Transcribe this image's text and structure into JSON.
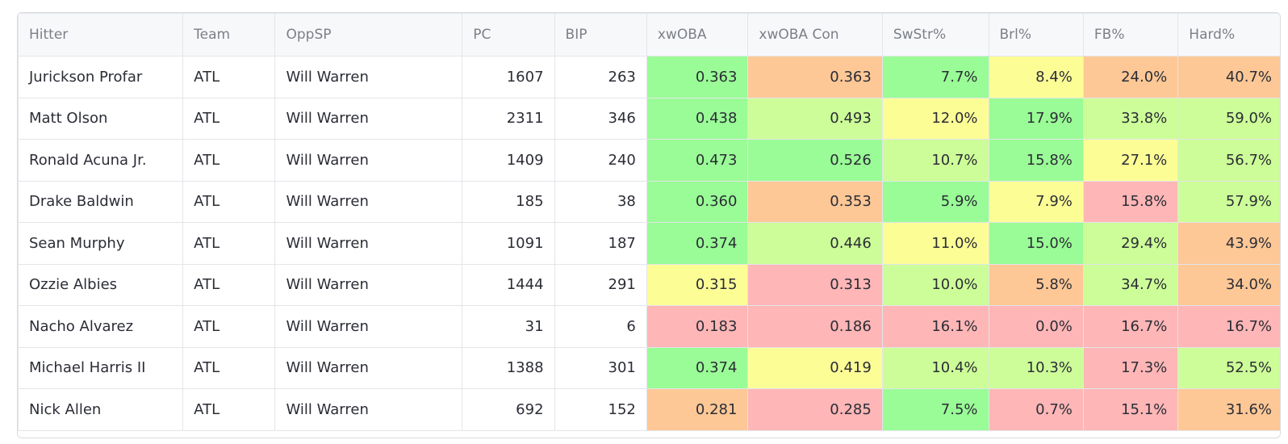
{
  "headers": [
    "Hitter",
    "Team",
    "OppSP",
    "PC",
    "BIP",
    "xwOBA",
    "xwOBA Con",
    "SwStr%",
    "Brl%",
    "FB%",
    "Hard%"
  ],
  "rows": [
    {
      "hitter": "Jurickson Profar",
      "team": "ATL",
      "oppsp": "Will Warren",
      "pc": "1607",
      "bip": "263",
      "xwoba": "0.363",
      "xwoba_con": "0.363",
      "swstr": "7.7%",
      "brl": "8.4%",
      "fb": "24.0%",
      "hard": "40.7%"
    },
    {
      "hitter": "Matt Olson",
      "team": "ATL",
      "oppsp": "Will Warren",
      "pc": "2311",
      "bip": "346",
      "xwoba": "0.438",
      "xwoba_con": "0.493",
      "swstr": "12.0%",
      "brl": "17.9%",
      "fb": "33.8%",
      "hard": "59.0%"
    },
    {
      "hitter": "Ronald Acuna Jr.",
      "team": "ATL",
      "oppsp": "Will Warren",
      "pc": "1409",
      "bip": "240",
      "xwoba": "0.473",
      "xwoba_con": "0.526",
      "swstr": "10.7%",
      "brl": "15.8%",
      "fb": "27.1%",
      "hard": "56.7%"
    },
    {
      "hitter": "Drake Baldwin",
      "team": "ATL",
      "oppsp": "Will Warren",
      "pc": "185",
      "bip": "38",
      "xwoba": "0.360",
      "xwoba_con": "0.353",
      "swstr": "5.9%",
      "brl": "7.9%",
      "fb": "15.8%",
      "hard": "57.9%"
    },
    {
      "hitter": "Sean Murphy",
      "team": "ATL",
      "oppsp": "Will Warren",
      "pc": "1091",
      "bip": "187",
      "xwoba": "0.374",
      "xwoba_con": "0.446",
      "swstr": "11.0%",
      "brl": "15.0%",
      "fb": "29.4%",
      "hard": "43.9%"
    },
    {
      "hitter": "Ozzie Albies",
      "team": "ATL",
      "oppsp": "Will Warren",
      "pc": "1444",
      "bip": "291",
      "xwoba": "0.315",
      "xwoba_con": "0.313",
      "swstr": "10.0%",
      "brl": "5.8%",
      "fb": "34.7%",
      "hard": "34.0%"
    },
    {
      "hitter": "Nacho Alvarez",
      "team": "ATL",
      "oppsp": "Will Warren",
      "pc": "31",
      "bip": "6",
      "xwoba": "0.183",
      "xwoba_con": "0.186",
      "swstr": "16.1%",
      "brl": "0.0%",
      "fb": "16.7%",
      "hard": "16.7%"
    },
    {
      "hitter": "Michael Harris II",
      "team": "ATL",
      "oppsp": "Will Warren",
      "pc": "1388",
      "bip": "301",
      "xwoba": "0.374",
      "xwoba_con": "0.419",
      "swstr": "10.4%",
      "brl": "10.3%",
      "fb": "17.3%",
      "hard": "52.5%"
    },
    {
      "hitter": "Nick Allen",
      "team": "ATL",
      "oppsp": "Will Warren",
      "pc": "692",
      "bip": "152",
      "xwoba": "0.281",
      "xwoba_con": "0.285",
      "swstr": "7.5%",
      "brl": "0.7%",
      "fb": "15.1%",
      "hard": "31.6%"
    }
  ]
}
